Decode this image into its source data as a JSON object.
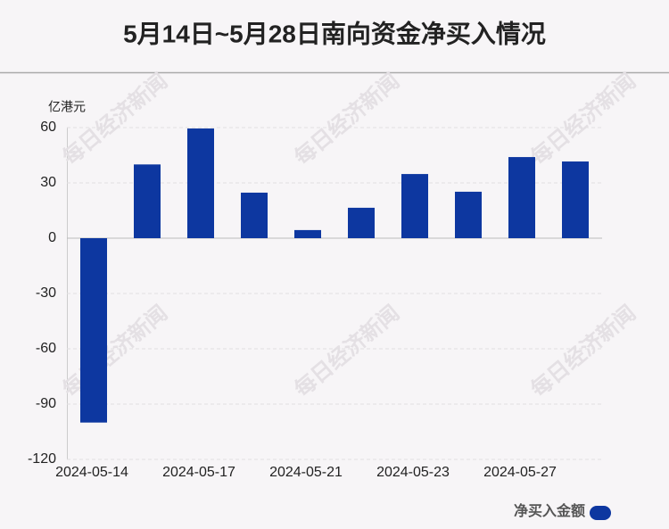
{
  "chart_data": {
    "type": "bar",
    "title": "5月14日~5月28日南向资金净买入情况",
    "y_label": "亿港元",
    "categories": [
      "2024-05-14",
      null,
      "2024-05-17",
      null,
      "2024-05-21",
      null,
      "2024-05-23",
      null,
      "2024-05-27",
      null
    ],
    "series": [
      {
        "name": "净买入金额",
        "color": "#0d37a0",
        "values": [
          -100,
          40,
          59.5,
          24.7,
          4.4,
          16.5,
          34.8,
          25.2,
          44,
          41.6
        ]
      }
    ],
    "ylim": [
      -120,
      60
    ],
    "yticks": [
      -120,
      -90,
      -60,
      -30,
      0,
      30,
      60
    ],
    "grid": true,
    "watermark": "每日经济新闻"
  }
}
